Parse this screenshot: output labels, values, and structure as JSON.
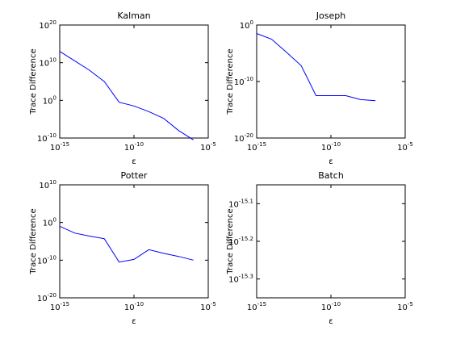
{
  "chart_data": [
    {
      "type": "line",
      "title": "Kalman",
      "xlabel": "ε",
      "ylabel": "Trace Difference",
      "xscale": "log",
      "yscale": "log",
      "xlim_exp": [
        -15,
        -5
      ],
      "ylim_exp": [
        -10,
        20
      ],
      "xticks": [
        {
          "base": "10",
          "exp": "-15",
          "v": -15
        },
        {
          "base": "10",
          "exp": "-10",
          "v": -10
        },
        {
          "base": "10",
          "exp": "-5",
          "v": -5
        }
      ],
      "yticks": [
        {
          "base": "10",
          "exp": "-10",
          "v": -10
        },
        {
          "base": "10",
          "exp": "0",
          "v": 0
        },
        {
          "base": "10",
          "exp": "10",
          "v": 10
        },
        {
          "base": "10",
          "exp": "20",
          "v": 20
        }
      ],
      "series": [
        {
          "x_exp": [
            -15,
            -14,
            -13,
            -12,
            -11,
            -10,
            -9,
            -8,
            -7,
            -6
          ],
          "y_exp": [
            13,
            10.5,
            8,
            5,
            -0.5,
            -1.5,
            -3,
            -4.8,
            -8,
            -10.5
          ]
        }
      ]
    },
    {
      "type": "line",
      "title": "Joseph",
      "xlabel": "ε",
      "ylabel": "Trace Difference",
      "xscale": "log",
      "yscale": "log",
      "xlim_exp": [
        -15,
        -5
      ],
      "ylim_exp": [
        -20,
        0
      ],
      "xticks": [
        {
          "base": "10",
          "exp": "-15",
          "v": -15
        },
        {
          "base": "10",
          "exp": "-10",
          "v": -10
        },
        {
          "base": "10",
          "exp": "-5",
          "v": -5
        }
      ],
      "yticks": [
        {
          "base": "10",
          "exp": "-20",
          "v": -20
        },
        {
          "base": "10",
          "exp": "-10",
          "v": -10
        },
        {
          "base": "10",
          "exp": "0",
          "v": 0
        }
      ],
      "series": [
        {
          "x_exp": [
            -15,
            -14,
            -13,
            -12,
            -11,
            -10,
            -9,
            -8,
            -7
          ],
          "y_exp": [
            -1.5,
            -2.5,
            -4.8,
            -7.2,
            -12.5,
            -12.5,
            -12.5,
            -13.2,
            -13.4
          ]
        }
      ]
    },
    {
      "type": "line",
      "title": "Potter",
      "xlabel": "ε",
      "ylabel": "Trace Difference",
      "xscale": "log",
      "yscale": "log",
      "xlim_exp": [
        -15,
        -5
      ],
      "ylim_exp": [
        -20,
        10
      ],
      "xticks": [
        {
          "base": "10",
          "exp": "-15",
          "v": -15
        },
        {
          "base": "10",
          "exp": "-10",
          "v": -10
        },
        {
          "base": "10",
          "exp": "-5",
          "v": -5
        }
      ],
      "yticks": [
        {
          "base": "10",
          "exp": "-20",
          "v": -20
        },
        {
          "base": "10",
          "exp": "-10",
          "v": -10
        },
        {
          "base": "10",
          "exp": "0",
          "v": 0
        },
        {
          "base": "10",
          "exp": "10",
          "v": 10
        }
      ],
      "series": [
        {
          "x_exp": [
            -15,
            -14,
            -13,
            -12,
            -11,
            -10,
            -9,
            -8,
            -7,
            -6
          ],
          "y_exp": [
            -1,
            -2.8,
            -3.6,
            -4.3,
            -10.5,
            -9.8,
            -7.2,
            -8.2,
            -9,
            -10
          ]
        }
      ]
    },
    {
      "type": "line",
      "title": "Batch",
      "xlabel": "ε",
      "ylabel": "Trace Difference",
      "xscale": "log",
      "yscale": "log",
      "xlim_exp": [
        -15,
        -5
      ],
      "ylim_exp": [
        -15.35,
        -15.05
      ],
      "xticks": [
        {
          "base": "10",
          "exp": "-15",
          "v": -15
        },
        {
          "base": "10",
          "exp": "-10",
          "v": -10
        },
        {
          "base": "10",
          "exp": "-5",
          "v": -5
        }
      ],
      "yticks": [
        {
          "base": "10",
          "exp": "-15.1",
          "v": -15.1
        },
        {
          "base": "10",
          "exp": "-15.2",
          "v": -15.2
        },
        {
          "base": "10",
          "exp": "-15.3",
          "v": -15.3
        }
      ],
      "series": []
    }
  ]
}
